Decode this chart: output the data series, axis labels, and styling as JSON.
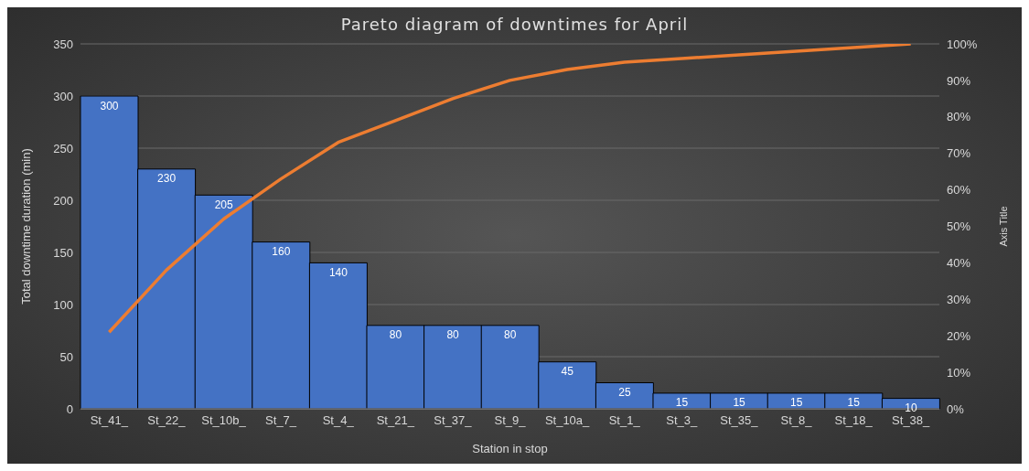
{
  "chart_data": {
    "type": "bar",
    "title": "Pareto diagram of downtimes for April",
    "xlabel": "Station in stop",
    "ylabel": "Total downtime duration (min)",
    "y2label": "Axis Title",
    "categories": [
      "St_41_",
      "St_22_",
      "St_10b_",
      "St_7_",
      "St_4_",
      "St_21_",
      "St_37_",
      "St_9_",
      "St_10a_",
      "St_1_",
      "St_3_",
      "St_35_",
      "St_8_",
      "St_18_",
      "St_38_"
    ],
    "series": [
      {
        "color": "#4472c4",
        "values": [
          300,
          230,
          205,
          160,
          140,
          80,
          80,
          80,
          45,
          25,
          15,
          15,
          15,
          15,
          10
        ],
        "value_labels": [
          "300",
          "230",
          "205",
          "160",
          "140",
          "80",
          "80",
          "80",
          "45",
          "25",
          "15",
          "15",
          "15",
          "15",
          "10"
        ]
      },
      {
        "type": "line",
        "axis": "y2",
        "color": "#ed7d31",
        "values": [
          21,
          38,
          52,
          63,
          73,
          79,
          85,
          90,
          93,
          95,
          96,
          97,
          98,
          99,
          100
        ]
      }
    ],
    "ylim": [
      0,
      350
    ],
    "yticks": [
      0,
      50,
      100,
      150,
      200,
      250,
      300,
      350
    ],
    "y2lim": [
      0,
      100
    ],
    "y2ticks": [
      {
        "value": 0,
        "label": "0%"
      },
      {
        "value": 10,
        "label": "10%"
      },
      {
        "value": 20,
        "label": "20%"
      },
      {
        "value": 30,
        "label": "30%"
      },
      {
        "value": 40,
        "label": "40%"
      },
      {
        "value": 50,
        "label": "50%"
      },
      {
        "value": 60,
        "label": "60%"
      },
      {
        "value": 70,
        "label": "70%"
      },
      {
        "value": 80,
        "label": "80%"
      },
      {
        "value": 90,
        "label": "90%"
      },
      {
        "value": 100,
        "label": "100%"
      }
    ],
    "grid": "y",
    "marker": "none",
    "line_style": "solid"
  }
}
